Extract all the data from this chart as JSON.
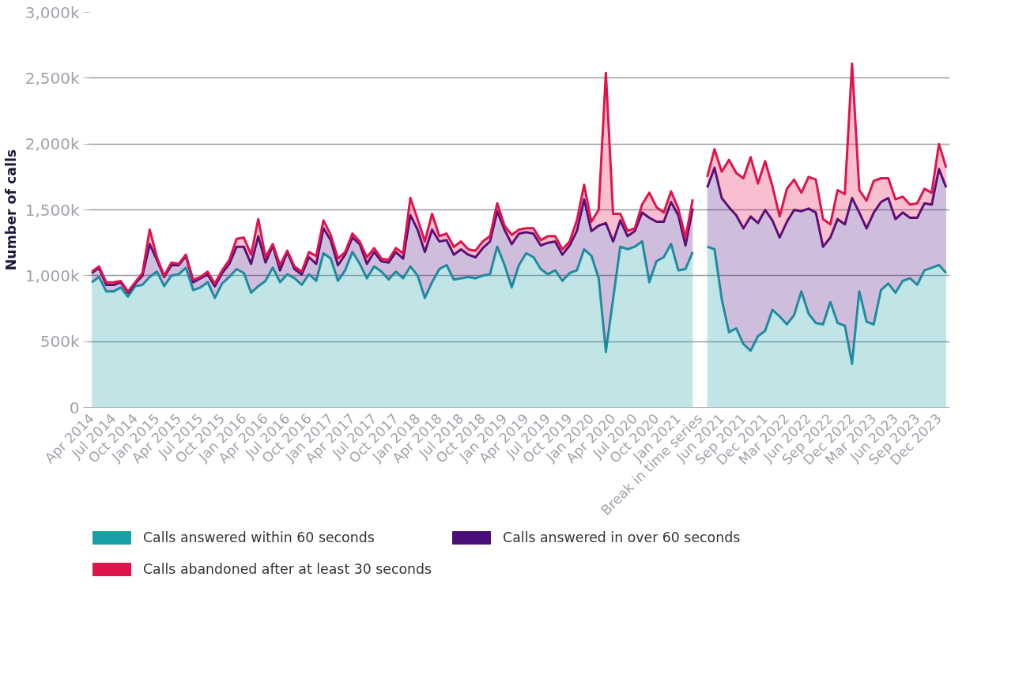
{
  "chart_data": {
    "type": "area",
    "stacked": true,
    "ylabel": "Number of calls",
    "categories": [
      "Apr 2014",
      null,
      null,
      "Jul 2014",
      null,
      null,
      "Oct 2014",
      null,
      null,
      "Jan 2015",
      null,
      null,
      "Apr 2015",
      null,
      null,
      "Jul 2015",
      null,
      null,
      "Oct 2015",
      null,
      null,
      "Jan 2016",
      null,
      null,
      "Apr 2016",
      null,
      null,
      "Jul 2016",
      null,
      null,
      "Oct 2016",
      null,
      null,
      "Jan 2017",
      null,
      null,
      "Apr 2017",
      null,
      null,
      "Jul 2017",
      null,
      null,
      "Oct 2017",
      null,
      null,
      "Jan 2018",
      null,
      null,
      "Apr 2018",
      null,
      null,
      "Jul 2018",
      null,
      null,
      "Oct 2018",
      null,
      null,
      "Jan 2019",
      null,
      null,
      "Apr 2019",
      null,
      null,
      "Jul 2019",
      null,
      null,
      "Oct 2019",
      null,
      null,
      "Jan 2020",
      null,
      null,
      "Apr 2020",
      null,
      null,
      "Jul 2020",
      null,
      null,
      "Oct 2020",
      null,
      null,
      "Jan 2021",
      null,
      null,
      "Break in time series",
      null,
      null,
      "Jun 2021",
      null,
      null,
      "Sep 2021",
      null,
      null,
      "Dec 2021",
      null,
      null,
      "Mar 2022",
      null,
      null,
      "Jun 2022",
      null,
      null,
      "Sep 2022",
      null,
      null,
      "Dec 2022",
      null,
      null,
      "Mar 2023",
      null,
      null,
      "Jun 2023",
      null,
      null,
      "Sep 2023",
      null,
      null,
      "Dec 2023",
      null
    ],
    "series": [
      {
        "name": "Calls answered within 60 seconds",
        "color": "#1a9fa5",
        "values": [
          950,
          990,
          880,
          880,
          910,
          840,
          920,
          930,
          990,
          1030,
          920,
          1000,
          1010,
          1060,
          890,
          910,
          950,
          830,
          940,
          990,
          1050,
          1020,
          870,
          920,
          960,
          1060,
          950,
          1010,
          980,
          930,
          1010,
          960,
          1170,
          1130,
          960,
          1040,
          1180,
          1090,
          980,
          1070,
          1030,
          970,
          1030,
          980,
          1070,
          1000,
          830,
          950,
          1050,
          1080,
          970,
          980,
          990,
          980,
          1000,
          1010,
          1220,
          1080,
          910,
          1080,
          1170,
          1140,
          1050,
          1010,
          1040,
          960,
          1020,
          1040,
          1200,
          1150,
          980,
          420,
          820,
          1220,
          1200,
          1220,
          1260,
          950,
          1110,
          1140,
          1240,
          1040,
          1050,
          1180,
          null,
          1220,
          1200,
          820,
          570,
          600,
          480,
          430,
          540,
          580,
          740,
          690,
          630,
          700,
          880,
          710,
          640,
          630,
          800,
          640,
          620,
          330,
          880,
          650,
          630,
          890,
          940,
          870,
          960,
          980,
          930,
          1040,
          1060,
          1080,
          1020
        ]
      },
      {
        "name": "Calls answered in over 60 seconds",
        "color": "#4b0f7b",
        "values": [
          70,
          70,
          50,
          50,
          40,
          30,
          20,
          70,
          250,
          90,
          70,
          80,
          70,
          90,
          60,
          70,
          60,
          90,
          80,
          100,
          170,
          200,
          220,
          380,
          140,
          170,
          90,
          170,
          70,
          80,
          130,
          130,
          190,
          140,
          120,
          120,
          110,
          150,
          110,
          110,
          80,
          130,
          150,
          150,
          390,
          350,
          350,
          400,
          210,
          190,
          190,
          220,
          170,
          160,
          210,
          250,
          270,
          270,
          330,
          240,
          160,
          180,
          180,
          240,
          220,
          200,
          210,
          300,
          380,
          190,
          400,
          980,
          440,
          200,
          100,
          120,
          220,
          490,
          300,
          270,
          320,
          420,
          180,
          330,
          null,
          450,
          620,
          770,
          950,
          860,
          880,
          1020,
          860,
          920,
          680,
          600,
          780,
          800,
          610,
          800,
          840,
          590,
          490,
          790,
          770,
          1260,
          600,
          710,
          850,
          670,
          650,
          560,
          520,
          460,
          510,
          510,
          480,
          730,
          650
        ]
      },
      {
        "name": "Calls abandoned after at least 30 seconds",
        "color": "#e0144c",
        "values": [
          10,
          10,
          20,
          20,
          10,
          10,
          10,
          20,
          110,
          20,
          10,
          20,
          10,
          10,
          20,
          10,
          20,
          20,
          20,
          30,
          60,
          70,
          70,
          130,
          40,
          10,
          40,
          10,
          20,
          20,
          40,
          60,
          60,
          40,
          50,
          20,
          30,
          20,
          50,
          30,
          20,
          20,
          30,
          40,
          130,
          80,
          80,
          120,
          40,
          50,
          60,
          60,
          40,
          50,
          50,
          40,
          60,
          30,
          70,
          30,
          30,
          40,
          40,
          50,
          40,
          40,
          30,
          80,
          110,
          70,
          120,
          1140,
          210,
          50,
          40,
          20,
          60,
          190,
          110,
          70,
          80,
          50,
          60,
          70,
          null,
          80,
          140,
          200,
          360,
          320,
          380,
          450,
          300,
          370,
          260,
          160,
          250,
          230,
          140,
          240,
          250,
          210,
          100,
          220,
          230,
          1020,
          170,
          210,
          240,
          180,
          150,
          150,
          120,
          100,
          110,
          110,
          90,
          190,
          150
        ]
      }
    ],
    "ylim": [
      0,
      3000
    ],
    "yticks": [
      0,
      {
        "value": 500,
        "label": "500k"
      },
      {
        "value": 1000,
        "label": "1,000k"
      },
      {
        "value": 1500,
        "label": "1,500k"
      },
      {
        "value": 2000,
        "label": "2,000k"
      },
      {
        "value": 2500,
        "label": "2,500k"
      },
      {
        "value": 3000,
        "label": "3,000k"
      }
    ],
    "grid": "y",
    "legend": "bottom"
  }
}
